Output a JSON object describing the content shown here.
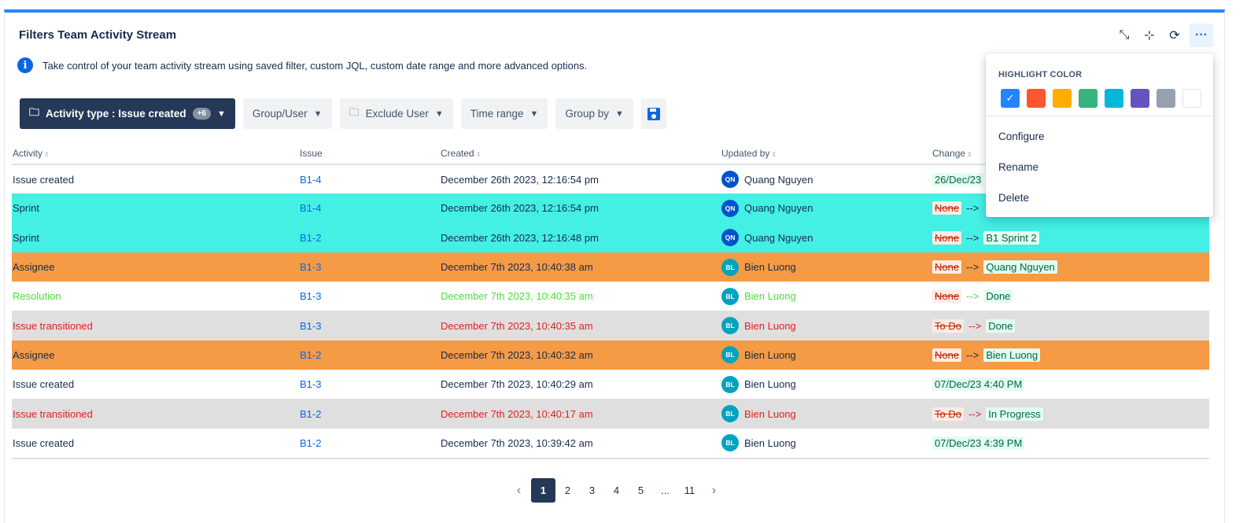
{
  "panel": {
    "title": "Filters Team Activity Stream"
  },
  "top_icons": [
    {
      "name": "minimize-icon",
      "glyph": "⤡"
    },
    {
      "name": "collapse-icon",
      "glyph": "⊹"
    },
    {
      "name": "refresh-icon",
      "glyph": "⟳"
    },
    {
      "name": "more-icon",
      "glyph": "···"
    }
  ],
  "info": {
    "glyph": "i",
    "text": "Take control of your team activity stream using saved filter, custom JQL, custom date range and more advanced options."
  },
  "filters": {
    "activity_type": "Activity type : Issue created",
    "activity_badge": "+6",
    "group_user": "Group/User",
    "exclude_user": "Exclude User",
    "time_range": "Time range",
    "group_by": "Group by"
  },
  "columns": {
    "activity": "Activity",
    "issue": "Issue",
    "created": "Created",
    "updated_by": "Updated by",
    "change": "Change"
  },
  "rows": [
    {
      "activity": "Issue created",
      "issue": "B1-4",
      "created": "December 26th 2023, 12:16:54 pm",
      "user": "Quang Nguyen",
      "initials": "QN",
      "old": "",
      "new": "26/Dec/23",
      "style": ""
    },
    {
      "activity": "Sprint",
      "issue": "B1-4",
      "created": "December 26th 2023, 12:16:54 pm",
      "user": "Quang Nguyen",
      "initials": "QN",
      "old": "None",
      "new": "",
      "style": "cyan"
    },
    {
      "activity": "Sprint",
      "issue": "B1-2",
      "created": "December 26th 2023, 12:16:48 pm",
      "user": "Quang Nguyen",
      "initials": "QN",
      "old": "None",
      "new": "B1 Sprint 2",
      "style": "cyan"
    },
    {
      "activity": "Assignee",
      "issue": "B1-3",
      "created": "December 7th 2023, 10:40:38 am",
      "user": "Bien Luong",
      "initials": "BL",
      "old": "None",
      "new": "Quang Nguyen",
      "style": "orange"
    },
    {
      "activity": "Resolution",
      "issue": "B1-3",
      "created": "December 7th 2023, 10:40:35 am",
      "user": "Bien Luong",
      "initials": "BL",
      "old": "None",
      "new": "Done",
      "style": "green-text"
    },
    {
      "activity": "Issue transitioned",
      "issue": "B1-3",
      "created": "December 7th 2023, 10:40:35 am",
      "user": "Bien Luong",
      "initials": "BL",
      "old": "To Do",
      "new": "Done",
      "style": "gray red-text"
    },
    {
      "activity": "Assignee",
      "issue": "B1-2",
      "created": "December 7th 2023, 10:40:32 am",
      "user": "Bien Luong",
      "initials": "BL",
      "old": "None",
      "new": "Bien Luong",
      "style": "orange"
    },
    {
      "activity": "Issue created",
      "issue": "B1-3",
      "created": "December 7th 2023, 10:40:29 am",
      "user": "Bien Luong",
      "initials": "BL",
      "old": "",
      "new": "07/Dec/23 4:40 PM",
      "style": ""
    },
    {
      "activity": "Issue transitioned",
      "issue": "B1-2",
      "created": "December 7th 2023, 10:40:17 am",
      "user": "Bien Luong",
      "initials": "BL",
      "old": "To Do",
      "new": "In Progress",
      "style": "gray red-text"
    },
    {
      "activity": "Issue created",
      "issue": "B1-2",
      "created": "December 7th 2023, 10:39:42 am",
      "user": "Bien Luong",
      "initials": "BL",
      "old": "",
      "new": "07/Dec/23 4:39 PM",
      "style": ""
    }
  ],
  "arrow_text": "-->",
  "pagination": {
    "pages": [
      "1",
      "2",
      "3",
      "4",
      "5",
      "...",
      "11"
    ],
    "active": "1"
  },
  "dropdown": {
    "heading": "HIGHLIGHT COLOR",
    "colors": [
      "#2684ff",
      "#ff5630",
      "#ffab00",
      "#36b37e",
      "#00b8d9",
      "#6554c0",
      "#97a0af",
      "#ffffff"
    ],
    "selected_index": 0,
    "items": [
      "Configure",
      "Rename",
      "Delete"
    ]
  }
}
